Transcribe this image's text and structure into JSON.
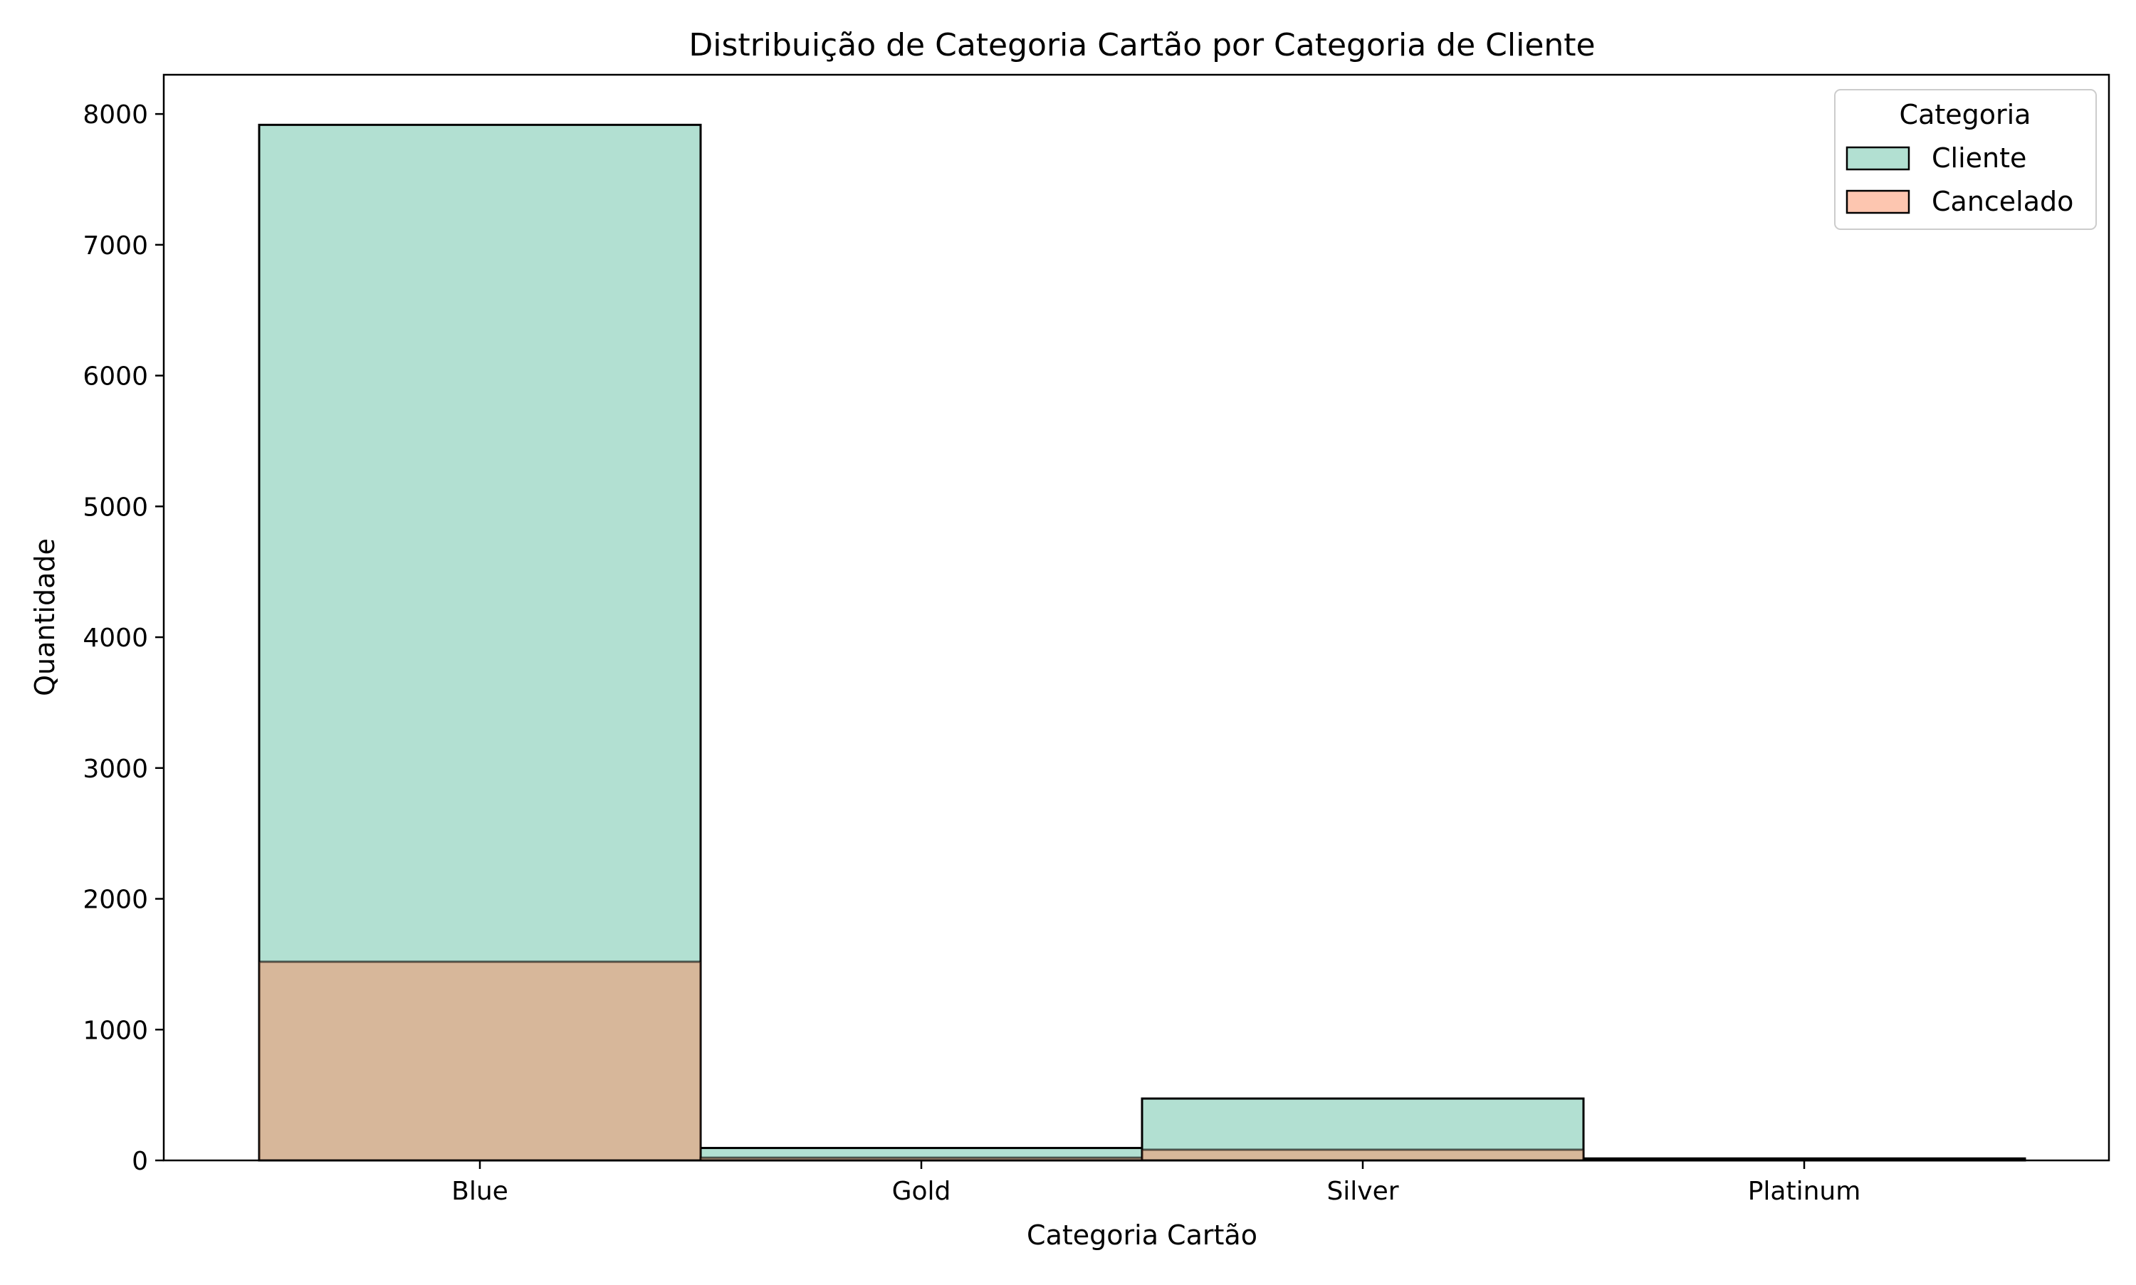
{
  "chart_data": {
    "type": "bar",
    "title": "Distribuição de Categoria Cartão por Categoria de Cliente",
    "xlabel": "Categoria Cartão",
    "ylabel": "Quantidade",
    "categories": [
      "Blue",
      "Gold",
      "Silver",
      "Platinum"
    ],
    "ylim": [
      0,
      8300
    ],
    "yticks": [
      0,
      1000,
      2000,
      3000,
      4000,
      5000,
      6000,
      7000,
      8000
    ],
    "layering": "overlay",
    "grid": false,
    "legend": {
      "title": "Categoria",
      "position": "top-right"
    },
    "series": [
      {
        "name": "Cliente",
        "values": [
          7917,
          95,
          473,
          15
        ],
        "color": "#66c2a5",
        "alpha": 0.5
      },
      {
        "name": "Cancelado",
        "values": [
          1519,
          21,
          82,
          5
        ],
        "color": "#fc8d62",
        "alpha": 0.5
      }
    ]
  }
}
